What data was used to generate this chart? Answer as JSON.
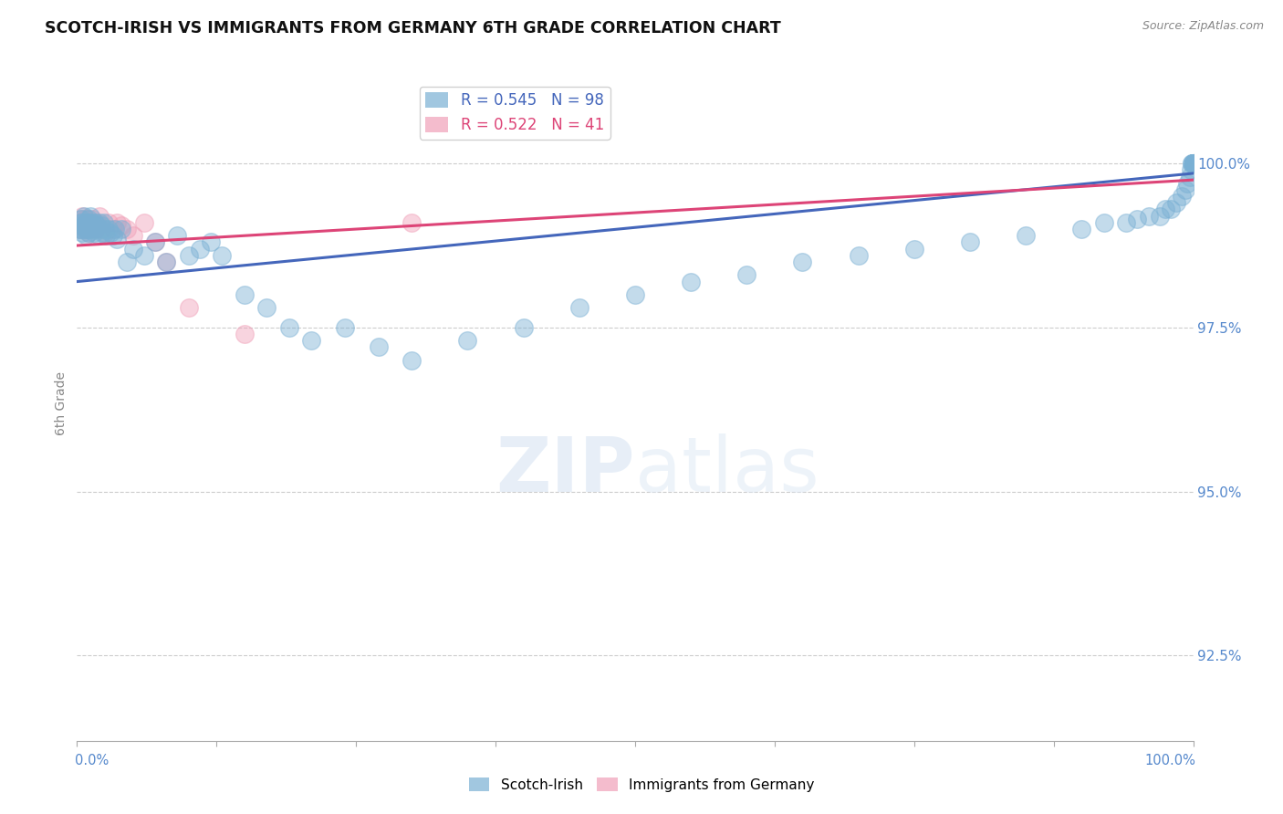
{
  "title": "SCOTCH-IRISH VS IMMIGRANTS FROM GERMANY 6TH GRADE CORRELATION CHART",
  "source": "Source: ZipAtlas.com",
  "ylabel": "6th Grade",
  "legend_blue_r": "R = 0.545",
  "legend_blue_n": "N = 98",
  "legend_pink_r": "R = 0.522",
  "legend_pink_n": "N = 41",
  "yticks": [
    92.5,
    95.0,
    97.5,
    100.0
  ],
  "ytick_labels": [
    "92.5%",
    "95.0%",
    "97.5%",
    "100.0%"
  ],
  "xlim": [
    0.0,
    1.0
  ],
  "ylim": [
    91.2,
    101.5
  ],
  "blue_color": "#7ab0d4",
  "pink_color": "#f0a0b8",
  "blue_line_color": "#4466bb",
  "pink_line_color": "#dd4477",
  "watermark_text": "ZIPatlas",
  "blue_line_x": [
    0.0,
    1.0
  ],
  "blue_line_y": [
    98.2,
    99.85
  ],
  "pink_line_x": [
    0.0,
    1.0
  ],
  "pink_line_y": [
    98.75,
    99.75
  ],
  "blue_scatter_x": [
    0.002,
    0.003,
    0.004,
    0.004,
    0.005,
    0.005,
    0.006,
    0.006,
    0.007,
    0.007,
    0.008,
    0.008,
    0.009,
    0.009,
    0.01,
    0.01,
    0.011,
    0.011,
    0.012,
    0.012,
    0.013,
    0.014,
    0.015,
    0.016,
    0.017,
    0.018,
    0.019,
    0.02,
    0.021,
    0.022,
    0.023,
    0.024,
    0.025,
    0.026,
    0.028,
    0.03,
    0.032,
    0.034,
    0.036,
    0.04,
    0.045,
    0.05,
    0.06,
    0.07,
    0.08,
    0.09,
    0.1,
    0.11,
    0.12,
    0.13,
    0.15,
    0.17,
    0.19,
    0.21,
    0.24,
    0.27,
    0.3,
    0.35,
    0.4,
    0.45,
    0.5,
    0.55,
    0.6,
    0.65,
    0.7,
    0.75,
    0.8,
    0.85,
    0.9,
    0.92,
    0.94,
    0.95,
    0.96,
    0.97,
    0.975,
    0.98,
    0.985,
    0.99,
    0.993,
    0.995,
    0.997,
    0.998,
    0.999,
    0.999,
    1.0,
    1.0,
    1.0,
    1.0,
    1.0,
    1.0,
    1.0,
    1.0,
    1.0,
    1.0,
    1.0,
    1.0,
    1.0,
    1.0
  ],
  "blue_scatter_y": [
    99.0,
    99.1,
    99.0,
    99.15,
    98.95,
    99.1,
    99.05,
    99.2,
    99.0,
    99.1,
    99.05,
    98.9,
    99.1,
    99.0,
    99.15,
    98.95,
    99.1,
    99.0,
    99.05,
    99.2,
    99.0,
    99.1,
    98.95,
    99.1,
    99.0,
    99.05,
    98.9,
    99.1,
    99.0,
    99.05,
    98.95,
    99.1,
    99.0,
    98.9,
    99.0,
    98.95,
    98.9,
    99.0,
    98.85,
    99.0,
    98.5,
    98.7,
    98.6,
    98.8,
    98.5,
    98.9,
    98.6,
    98.7,
    98.8,
    98.6,
    98.0,
    97.8,
    97.5,
    97.3,
    97.5,
    97.2,
    97.0,
    97.3,
    97.5,
    97.8,
    98.0,
    98.2,
    98.3,
    98.5,
    98.6,
    98.7,
    98.8,
    98.9,
    99.0,
    99.1,
    99.1,
    99.15,
    99.2,
    99.2,
    99.3,
    99.3,
    99.4,
    99.5,
    99.6,
    99.7,
    99.8,
    99.9,
    100.0,
    100.0,
    100.0,
    100.0,
    100.0,
    100.0,
    100.0,
    100.0,
    100.0,
    100.0,
    100.0,
    100.0,
    100.0,
    100.0,
    100.0,
    100.0
  ],
  "pink_scatter_x": [
    0.001,
    0.002,
    0.003,
    0.003,
    0.004,
    0.005,
    0.005,
    0.006,
    0.007,
    0.007,
    0.008,
    0.008,
    0.009,
    0.009,
    0.01,
    0.01,
    0.011,
    0.012,
    0.013,
    0.014,
    0.015,
    0.016,
    0.017,
    0.018,
    0.019,
    0.02,
    0.022,
    0.025,
    0.028,
    0.032,
    0.036,
    0.04,
    0.045,
    0.05,
    0.06,
    0.07,
    0.08,
    0.1,
    0.15,
    0.3,
    1.0
  ],
  "pink_scatter_y": [
    99.1,
    99.0,
    99.15,
    99.05,
    99.1,
    99.2,
    99.0,
    99.1,
    99.05,
    99.15,
    99.0,
    99.1,
    99.15,
    99.0,
    99.1,
    98.95,
    99.05,
    99.1,
    99.0,
    99.15,
    99.05,
    99.1,
    99.0,
    99.1,
    99.05,
    99.2,
    99.0,
    98.95,
    99.1,
    99.0,
    99.1,
    99.05,
    99.0,
    98.9,
    99.1,
    98.8,
    98.5,
    97.8,
    97.4,
    99.1,
    100.0
  ]
}
